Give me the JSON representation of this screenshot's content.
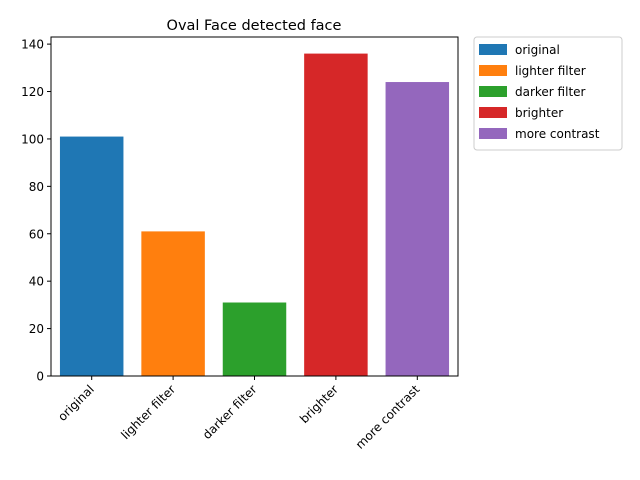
{
  "chart_data": {
    "type": "bar",
    "title": "Oval Face detected face",
    "xlabel": "",
    "ylabel": "",
    "categories": [
      "original",
      "lighter filter",
      "darker filter",
      "brighter",
      "more contrast"
    ],
    "values": [
      101,
      61,
      31,
      136,
      124
    ],
    "colors": [
      "#1f77b4",
      "#ff7f0e",
      "#2ca02c",
      "#d62728",
      "#9467bd"
    ],
    "ylim": [
      0,
      143
    ],
    "yticks": [
      0,
      20,
      40,
      60,
      80,
      100,
      120,
      140
    ],
    "grid": false,
    "legend": {
      "placement": "outside-top-right",
      "entries": [
        "original",
        "lighter filter",
        "darker filter",
        "brighter",
        "more contrast"
      ]
    }
  }
}
